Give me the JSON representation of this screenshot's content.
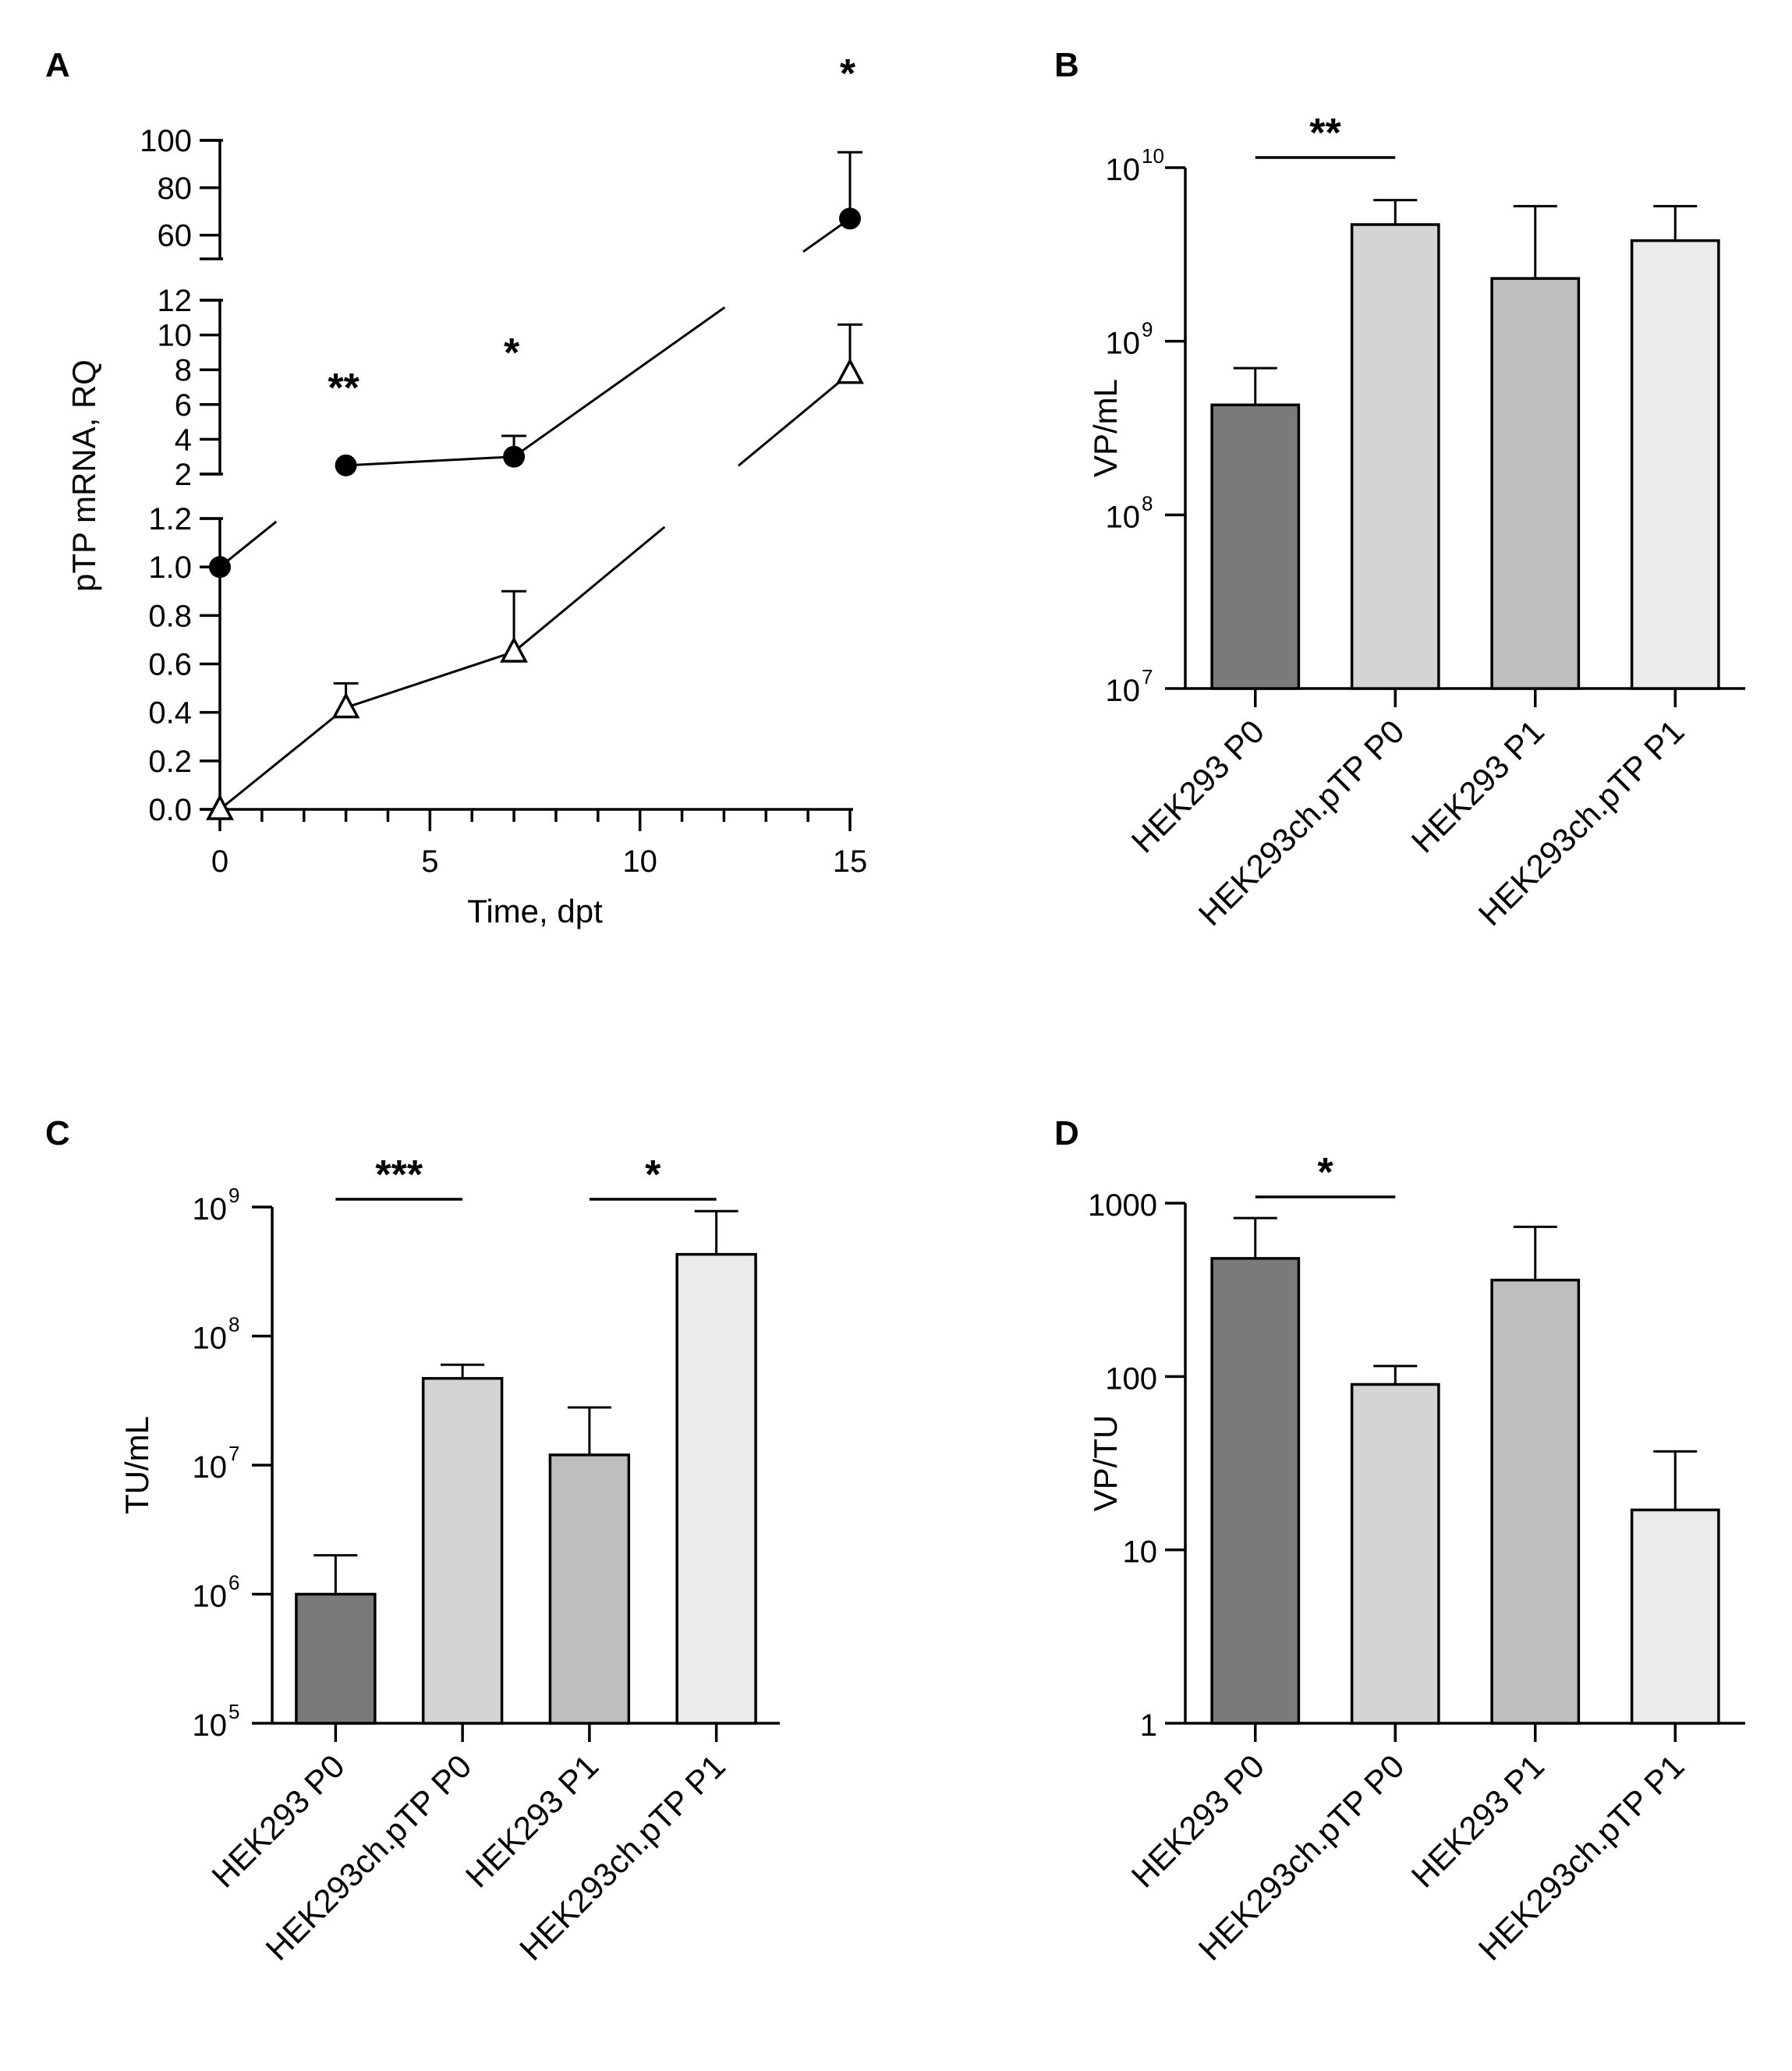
{
  "chart_data": [
    {
      "panel": "A",
      "type": "line",
      "xlabel": "Time, dpt",
      "ylabel": "pTP mRNA, RQ",
      "x_ticks": [
        "0",
        "5",
        "10",
        "15"
      ],
      "y_ticks_lower": [
        "0.0",
        "0.2",
        "0.4",
        "0.6",
        "0.8",
        "1.0",
        "1.2"
      ],
      "y_ticks_middle": [
        "2",
        "4",
        "6",
        "8",
        "10",
        "12"
      ],
      "y_ticks_upper": [
        "60",
        "80",
        "100"
      ],
      "y_segments": [
        [
          0,
          1.2
        ],
        [
          2,
          12
        ],
        [
          50,
          100
        ]
      ],
      "xlim": [
        0,
        15
      ],
      "series": [
        {
          "name": "filled circles",
          "marker": "circle",
          "x": [
            0,
            3,
            7,
            15
          ],
          "y": [
            1.0,
            2.5,
            3.0,
            67
          ],
          "err": [
            0,
            0,
            1.2,
            28
          ]
        },
        {
          "name": "open triangles",
          "marker": "triangle",
          "x": [
            0,
            3,
            7,
            15
          ],
          "y": [
            0.0,
            0.42,
            0.65,
            7.8
          ],
          "err": [
            0,
            0.1,
            0.25,
            2.8
          ]
        }
      ],
      "significance": [
        {
          "x": 3,
          "label": "**"
        },
        {
          "x": 7,
          "label": "*"
        },
        {
          "x": 15,
          "label": "*"
        }
      ]
    },
    {
      "panel": "B",
      "type": "bar",
      "ylabel": "VP/mL",
      "yscale": "log",
      "ylim": [
        10000000.0,
        10000000000.0
      ],
      "y_ticks": [
        {
          "base": "10",
          "exp": "7"
        },
        {
          "base": "10",
          "exp": "8"
        },
        {
          "base": "10",
          "exp": "9"
        },
        {
          "base": "10",
          "exp": "10"
        }
      ],
      "categories": [
        "HEK293 P0",
        "HEK293ch.pTP P0",
        "HEK293 P1",
        "HEK293ch.pTP P1"
      ],
      "values": [
        430000000.0,
        4700000000.0,
        2300000000.0,
        3800000000.0
      ],
      "err_upper": [
        700000000.0,
        6500000000.0,
        6000000000.0,
        6000000000.0
      ],
      "colors": [
        "#7a7a7a",
        "#d4d4d4",
        "#bebebe",
        "#ebebeb"
      ],
      "significance": [
        {
          "from": 0,
          "to": 1,
          "label": "**"
        }
      ]
    },
    {
      "panel": "C",
      "type": "bar",
      "ylabel": "TU/mL",
      "yscale": "log",
      "ylim": [
        100000.0,
        1000000000.0
      ],
      "y_ticks": [
        {
          "base": "10",
          "exp": "5"
        },
        {
          "base": "10",
          "exp": "6"
        },
        {
          "base": "10",
          "exp": "7"
        },
        {
          "base": "10",
          "exp": "8"
        },
        {
          "base": "10",
          "exp": "9"
        }
      ],
      "categories": [
        "HEK293 P0",
        "HEK293ch.pTP P0",
        "HEK293 P1",
        "HEK293ch.pTP P1"
      ],
      "values": [
        1000000.0,
        47000000.0,
        12000000.0,
        430000000.0
      ],
      "err_upper": [
        2000000.0,
        60000000.0,
        28000000.0,
        930000000.0
      ],
      "colors": [
        "#7a7a7a",
        "#d4d4d4",
        "#bebebe",
        "#ebebeb"
      ],
      "significance": [
        {
          "from": 0,
          "to": 1,
          "label": "***"
        },
        {
          "from": 2,
          "to": 3,
          "label": "*"
        }
      ]
    },
    {
      "panel": "D",
      "type": "bar",
      "ylabel": "VP/TU",
      "yscale": "log",
      "ylim": [
        1,
        1000
      ],
      "y_ticks": [
        {
          "base": "1",
          "exp": ""
        },
        {
          "base": "10",
          "exp": ""
        },
        {
          "base": "100",
          "exp": ""
        },
        {
          "base": "1000",
          "exp": ""
        }
      ],
      "categories": [
        "HEK293 P0",
        "HEK293ch.pTP P0",
        "HEK293 P1",
        "HEK293ch.pTP P1"
      ],
      "values": [
        480,
        90,
        360,
        17
      ],
      "err_upper": [
        820,
        115,
        730,
        37
      ],
      "colors": [
        "#7a7a7a",
        "#d4d4d4",
        "#bebebe",
        "#ebebeb"
      ],
      "significance": [
        {
          "from": 0,
          "to": 1,
          "label": "*"
        }
      ]
    }
  ]
}
